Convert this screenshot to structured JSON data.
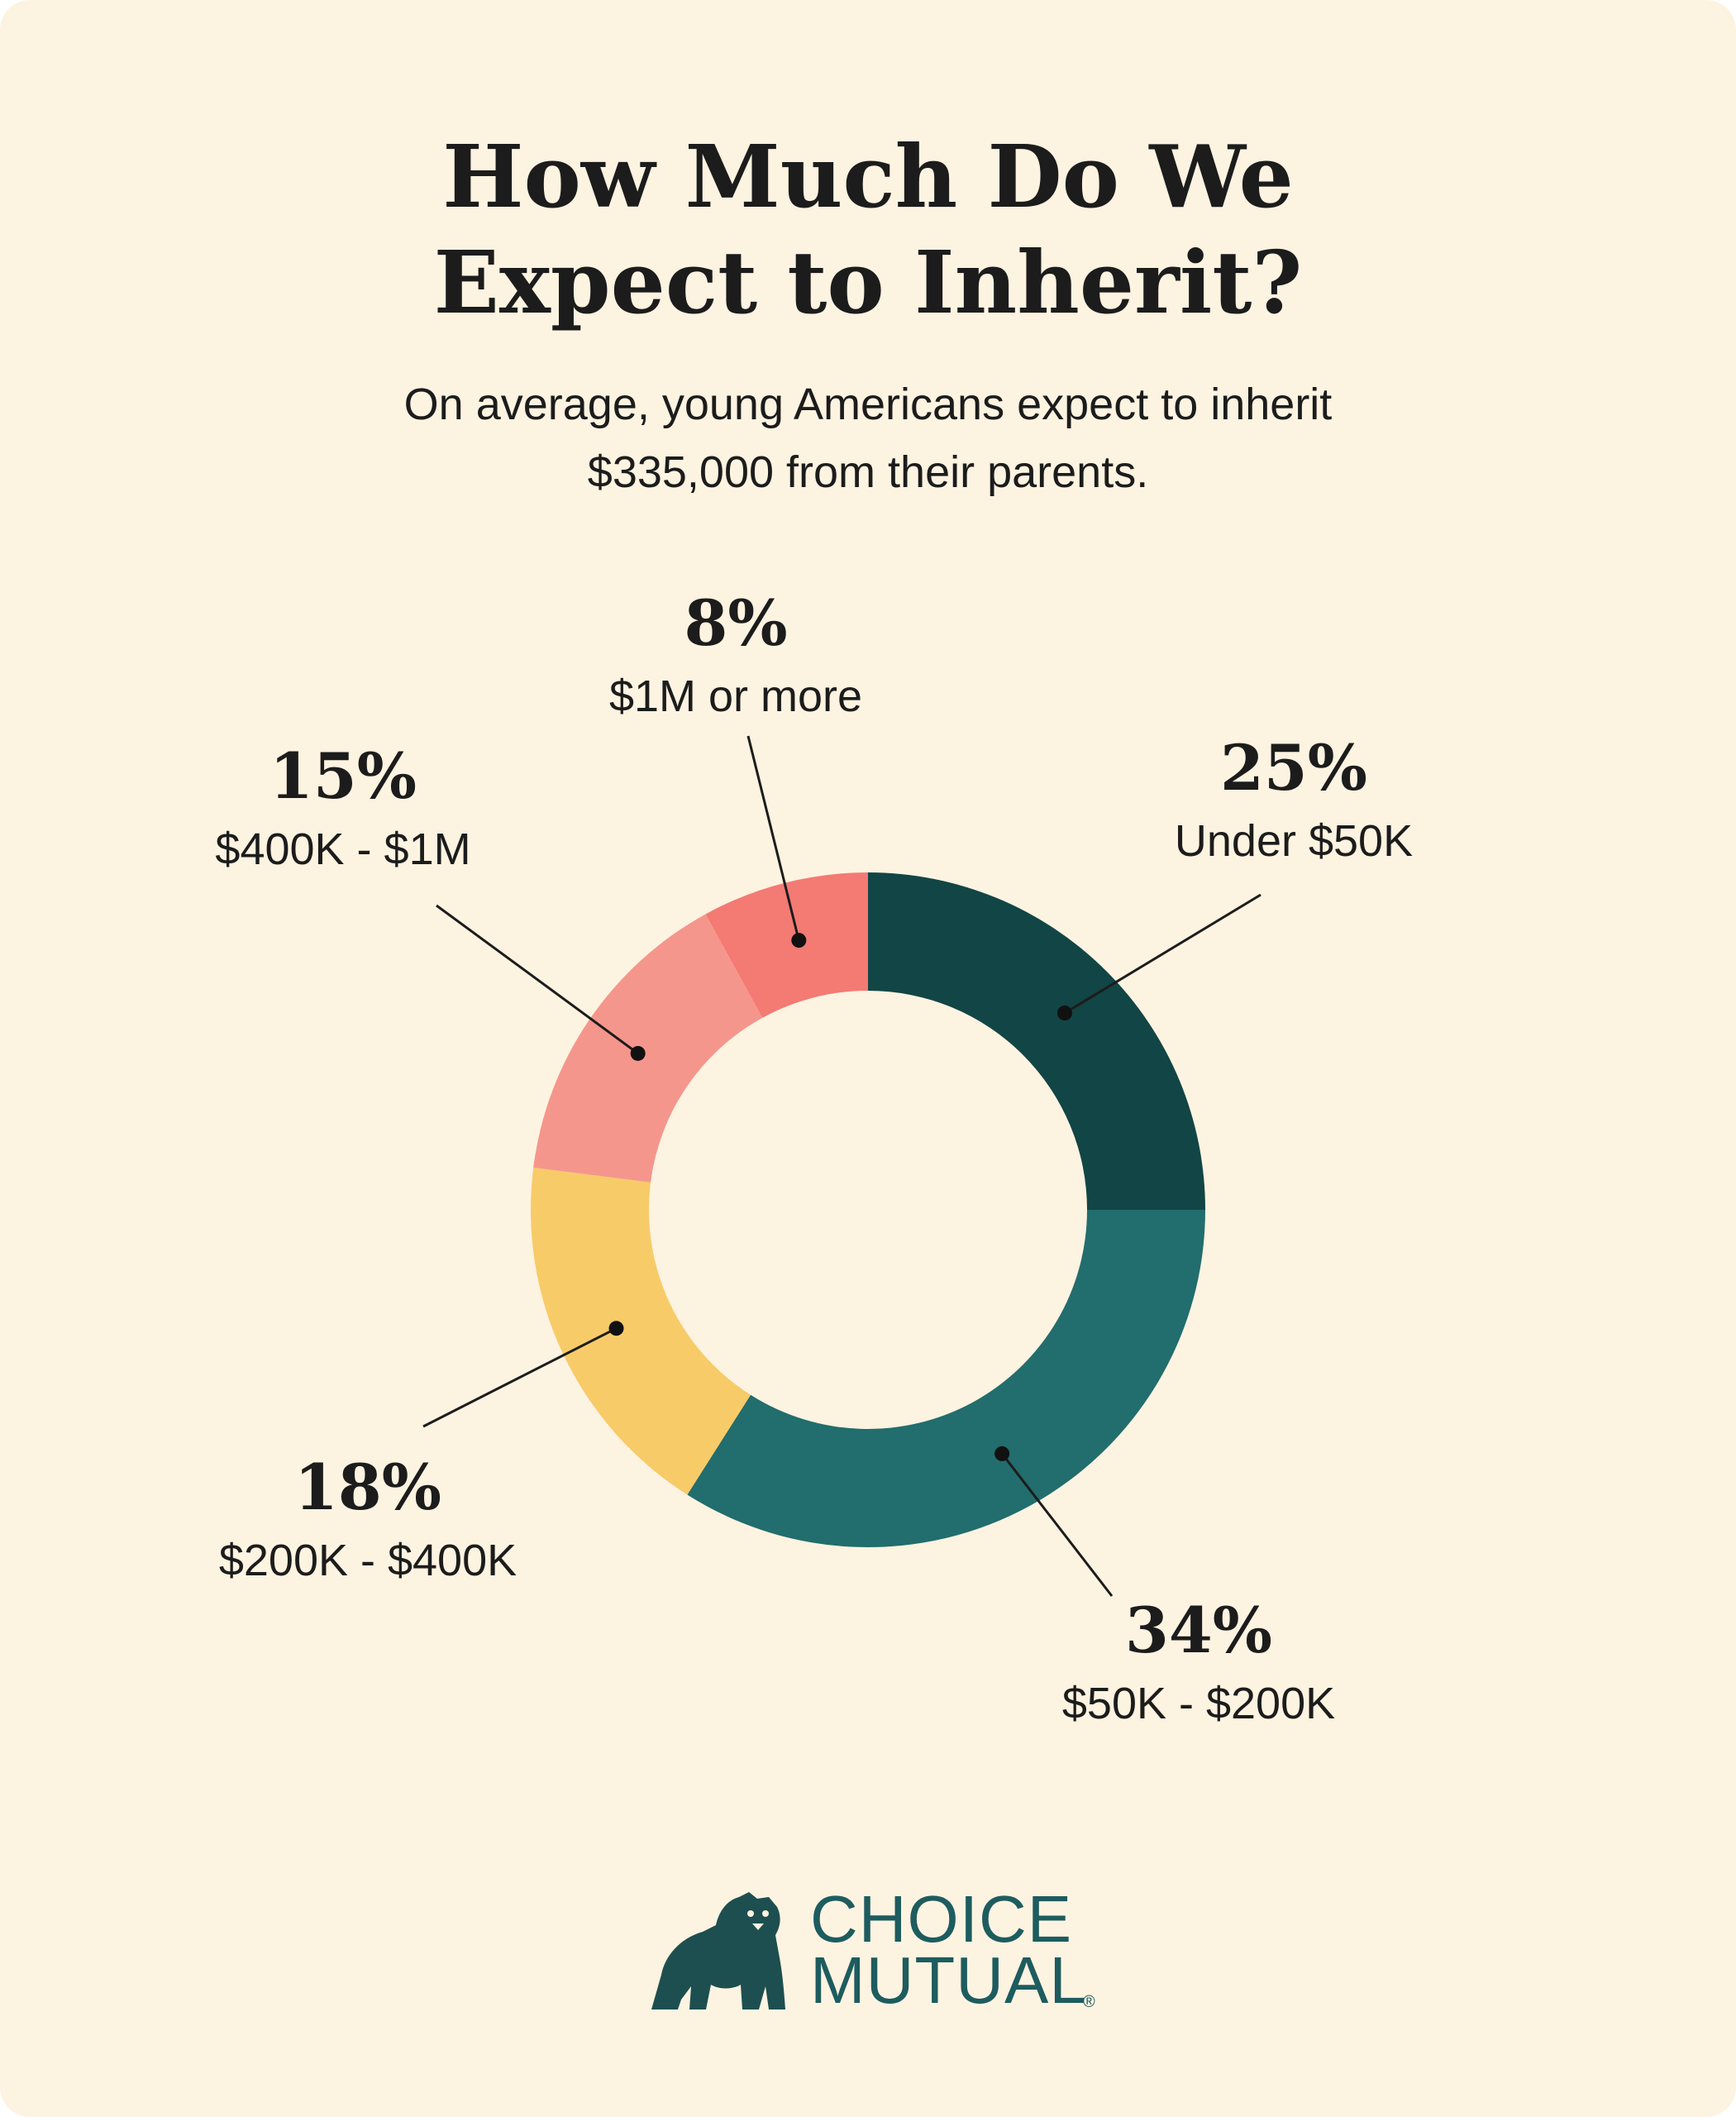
{
  "title": {
    "line1": "How Much Do We",
    "line2": "Expect to Inherit?"
  },
  "subtitle": {
    "line1": "On average, young Americans expect to inherit",
    "line2": "$335,000 from their parents."
  },
  "chart_data": {
    "type": "pie",
    "donut": true,
    "start": "12 o'clock",
    "direction": "clockwise",
    "title": "",
    "series": [
      {
        "label": "Under $50K",
        "value": 25,
        "percent_label": "25%",
        "color": "#124545"
      },
      {
        "label": "$50K - $200K",
        "value": 34,
        "percent_label": "34%",
        "color": "#226d6d"
      },
      {
        "label": "$200K - $400K",
        "value": 18,
        "percent_label": "18%",
        "color": "#f8cb69"
      },
      {
        "label": "$400K - $1M",
        "value": 15,
        "percent_label": "15%",
        "color": "#f5968c"
      },
      {
        "label": "$1M or more",
        "value": 8,
        "percent_label": "8%",
        "color": "#f47a74"
      }
    ]
  },
  "logo": {
    "line1": "CHOICE",
    "line2": "MUTUAL",
    "mark": "®",
    "icon": "bear-icon",
    "color": "#1d5c5f"
  }
}
